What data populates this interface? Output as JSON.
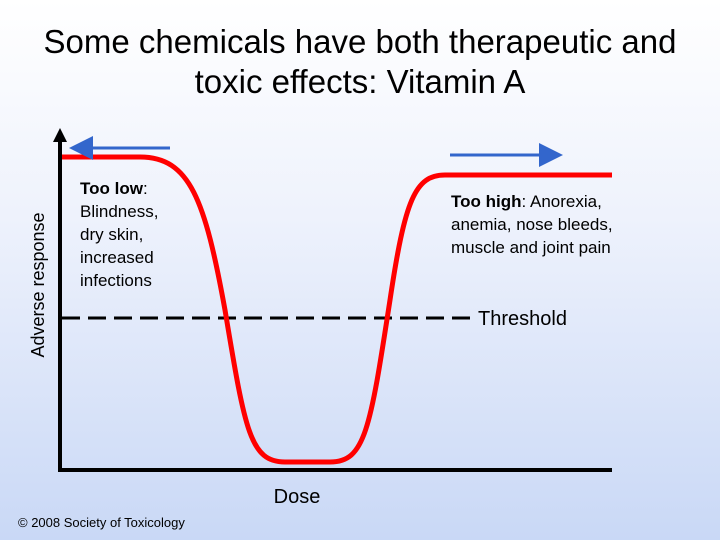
{
  "title": "Some chemicals have both therapeutic and toxic effects: Vitamin A",
  "axes": {
    "y_label": "Adverse response",
    "x_label": "Dose"
  },
  "annotations": {
    "too_low": {
      "term": "Too low",
      "text": ": Blindness, dry skin, increased infections"
    },
    "too_high": {
      "term": "Too high",
      "text": ": Anorexia, anemia, nose bleeds, muscle and joint pain"
    },
    "threshold": "Threshold"
  },
  "footer": "© 2008 Society of Toxicology"
}
